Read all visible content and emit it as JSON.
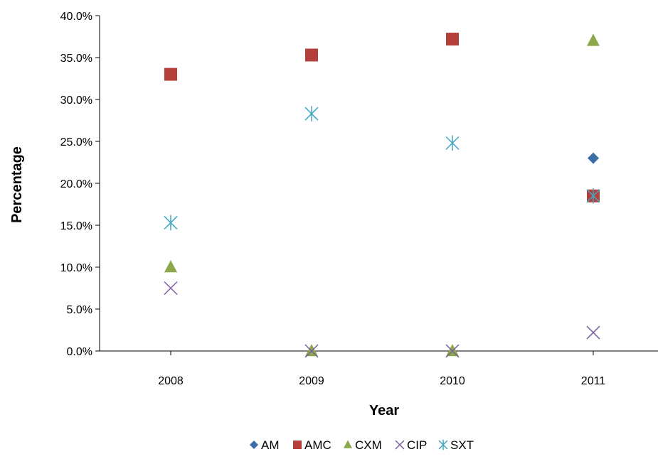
{
  "chart_data": {
    "type": "scatter",
    "title": "",
    "xlabel": "Year",
    "ylabel": "Percentage",
    "categories": [
      "2008",
      "2009",
      "2010",
      "2011"
    ],
    "ylim": [
      0,
      40
    ],
    "yticks": [
      "0.0%",
      "5.0%",
      "10.0%",
      "15.0%",
      "20.0%",
      "25.0%",
      "30.0%",
      "35.0%",
      "40.0%"
    ],
    "grid": false,
    "legend_position": "bottom",
    "series": [
      {
        "name": "AM",
        "marker": "diamond",
        "color": "#3A6EA5",
        "values": [
          null,
          null,
          null,
          23.0
        ]
      },
      {
        "name": "AMC",
        "marker": "square",
        "color": "#B5403B",
        "values": [
          33.0,
          35.3,
          37.2,
          18.5
        ]
      },
      {
        "name": "CXM",
        "marker": "triangle",
        "color": "#8BA84A",
        "values": [
          10.0,
          0.0,
          0.0,
          37.0
        ]
      },
      {
        "name": "CIP",
        "marker": "x",
        "color": "#7B5C9C",
        "values": [
          7.5,
          0.0,
          0.0,
          2.2
        ]
      },
      {
        "name": "SXT",
        "marker": "star",
        "color": "#40A7C2",
        "values": [
          15.3,
          28.3,
          24.8,
          18.5
        ]
      }
    ]
  }
}
